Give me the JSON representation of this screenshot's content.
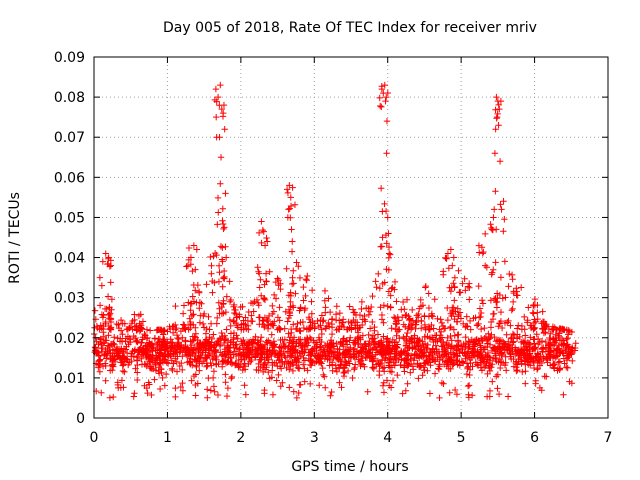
{
  "chart_data": {
    "type": "scatter",
    "title": "Day 005 of 2018, Rate Of TEC Index for receiver mriv",
    "xlabel": "GPS time / hours",
    "ylabel": "ROTI / TECUs",
    "xlim": [
      0,
      7
    ],
    "ylim": [
      0,
      0.09
    ],
    "grid": true,
    "marker": "+",
    "color": "#ff0000",
    "x_ticks": [
      0,
      1,
      2,
      3,
      4,
      5,
      6,
      7
    ],
    "x_tick_labels": [
      "0",
      "1",
      "2",
      "3",
      "4",
      "5",
      "6",
      "7"
    ],
    "y_ticks": [
      0,
      0.01,
      0.02,
      0.03,
      0.04,
      0.05,
      0.06,
      0.07,
      0.08,
      0.09
    ],
    "y_tick_labels": [
      "0",
      "0.01",
      "0.02",
      "0.03",
      "0.04",
      "0.05",
      "0.06",
      "0.07",
      "0.08",
      "0.09"
    ],
    "band": {
      "x_range": [
        0,
        6.52
      ],
      "typical": [
        0.006,
        0.022
      ],
      "upper_envelope": [
        [
          0.0,
          0.026
        ],
        [
          0.2,
          0.041
        ],
        [
          0.35,
          0.025
        ],
        [
          0.6,
          0.027
        ],
        [
          0.75,
          0.022
        ],
        [
          1.0,
          0.021
        ],
        [
          1.3,
          0.043
        ],
        [
          1.5,
          0.03
        ],
        [
          1.7,
          0.08
        ],
        [
          1.8,
          0.04
        ],
        [
          2.0,
          0.028
        ],
        [
          2.3,
          0.049
        ],
        [
          2.5,
          0.035
        ],
        [
          2.7,
          0.058
        ],
        [
          2.9,
          0.036
        ],
        [
          3.2,
          0.032
        ],
        [
          3.5,
          0.028
        ],
        [
          3.7,
          0.03
        ],
        [
          3.95,
          0.083
        ],
        [
          4.1,
          0.035
        ],
        [
          4.3,
          0.03
        ],
        [
          4.5,
          0.033
        ],
        [
          4.8,
          0.041
        ],
        [
          5.0,
          0.037
        ],
        [
          5.3,
          0.047
        ],
        [
          5.5,
          0.08
        ],
        [
          5.7,
          0.036
        ],
        [
          6.0,
          0.03
        ],
        [
          6.2,
          0.024
        ],
        [
          6.52,
          0.021
        ]
      ]
    },
    "spikes": [
      {
        "x_range": [
          1.62,
          1.8
        ],
        "peak": 0.083,
        "points": [
          [
            1.66,
            0.082
          ],
          [
            1.69,
            0.08
          ],
          [
            1.72,
            0.083
          ],
          [
            1.74,
            0.077
          ],
          [
            1.76,
            0.076
          ],
          [
            1.77,
            0.078
          ],
          [
            1.78,
            0.072
          ],
          [
            1.71,
            0.07
          ],
          [
            1.67,
            0.07
          ],
          [
            1.79,
            0.056
          ],
          [
            1.8,
            0.04
          ],
          [
            1.73,
            0.065
          ]
        ]
      },
      {
        "x_range": [
          2.6,
          2.72
        ],
        "peak": 0.058,
        "points": [
          [
            2.63,
            0.057
          ],
          [
            2.66,
            0.058
          ],
          [
            2.68,
            0.055
          ],
          [
            2.65,
            0.052
          ],
          [
            2.69,
            0.047
          ],
          [
            2.7,
            0.044
          ],
          [
            2.64,
            0.05
          ]
        ]
      },
      {
        "x_range": [
          2.2,
          2.4
        ],
        "peak": 0.049,
        "points": [
          [
            2.28,
            0.049
          ],
          [
            2.33,
            0.043
          ],
          [
            2.36,
            0.044
          ],
          [
            2.25,
            0.036
          ]
        ]
      },
      {
        "x_range": [
          3.9,
          4.02
        ],
        "peak": 0.083,
        "points": [
          [
            3.92,
            0.082
          ],
          [
            3.94,
            0.081
          ],
          [
            3.96,
            0.083
          ],
          [
            3.98,
            0.08
          ],
          [
            3.97,
            0.079
          ],
          [
            3.99,
            0.074
          ],
          [
            3.985,
            0.066
          ],
          [
            4.0,
            0.05
          ],
          [
            4.01,
            0.046
          ],
          [
            4.02,
            0.041
          ]
        ]
      },
      {
        "x_range": [
          5.4,
          5.58
        ],
        "peak": 0.08,
        "points": [
          [
            5.48,
            0.08
          ],
          [
            5.5,
            0.079
          ],
          [
            5.52,
            0.077
          ],
          [
            5.49,
            0.075
          ],
          [
            5.51,
            0.073
          ],
          [
            5.47,
            0.072
          ],
          [
            5.46,
            0.066
          ],
          [
            5.53,
            0.064
          ],
          [
            5.45,
            0.052
          ],
          [
            5.55,
            0.052
          ],
          [
            5.44,
            0.05
          ],
          [
            5.42,
            0.047
          ]
        ]
      },
      {
        "x_range": [
          1.3,
          1.45
        ],
        "peak": 0.043,
        "points": [
          [
            1.32,
            0.04
          ],
          [
            1.36,
            0.043
          ],
          [
            1.4,
            0.042
          ],
          [
            1.38,
            0.037
          ]
        ]
      },
      {
        "x_range": [
          0.1,
          0.25
        ],
        "peak": 0.041,
        "points": [
          [
            0.12,
            0.039
          ],
          [
            0.16,
            0.041
          ],
          [
            0.2,
            0.04
          ],
          [
            0.23,
            0.038
          ],
          [
            0.08,
            0.035
          ]
        ]
      },
      {
        "x_range": [
          4.8,
          4.92
        ],
        "peak": 0.042,
        "points": [
          [
            4.82,
            0.041
          ],
          [
            4.86,
            0.042
          ],
          [
            4.9,
            0.04
          ],
          [
            4.88,
            0.038
          ]
        ]
      }
    ]
  }
}
